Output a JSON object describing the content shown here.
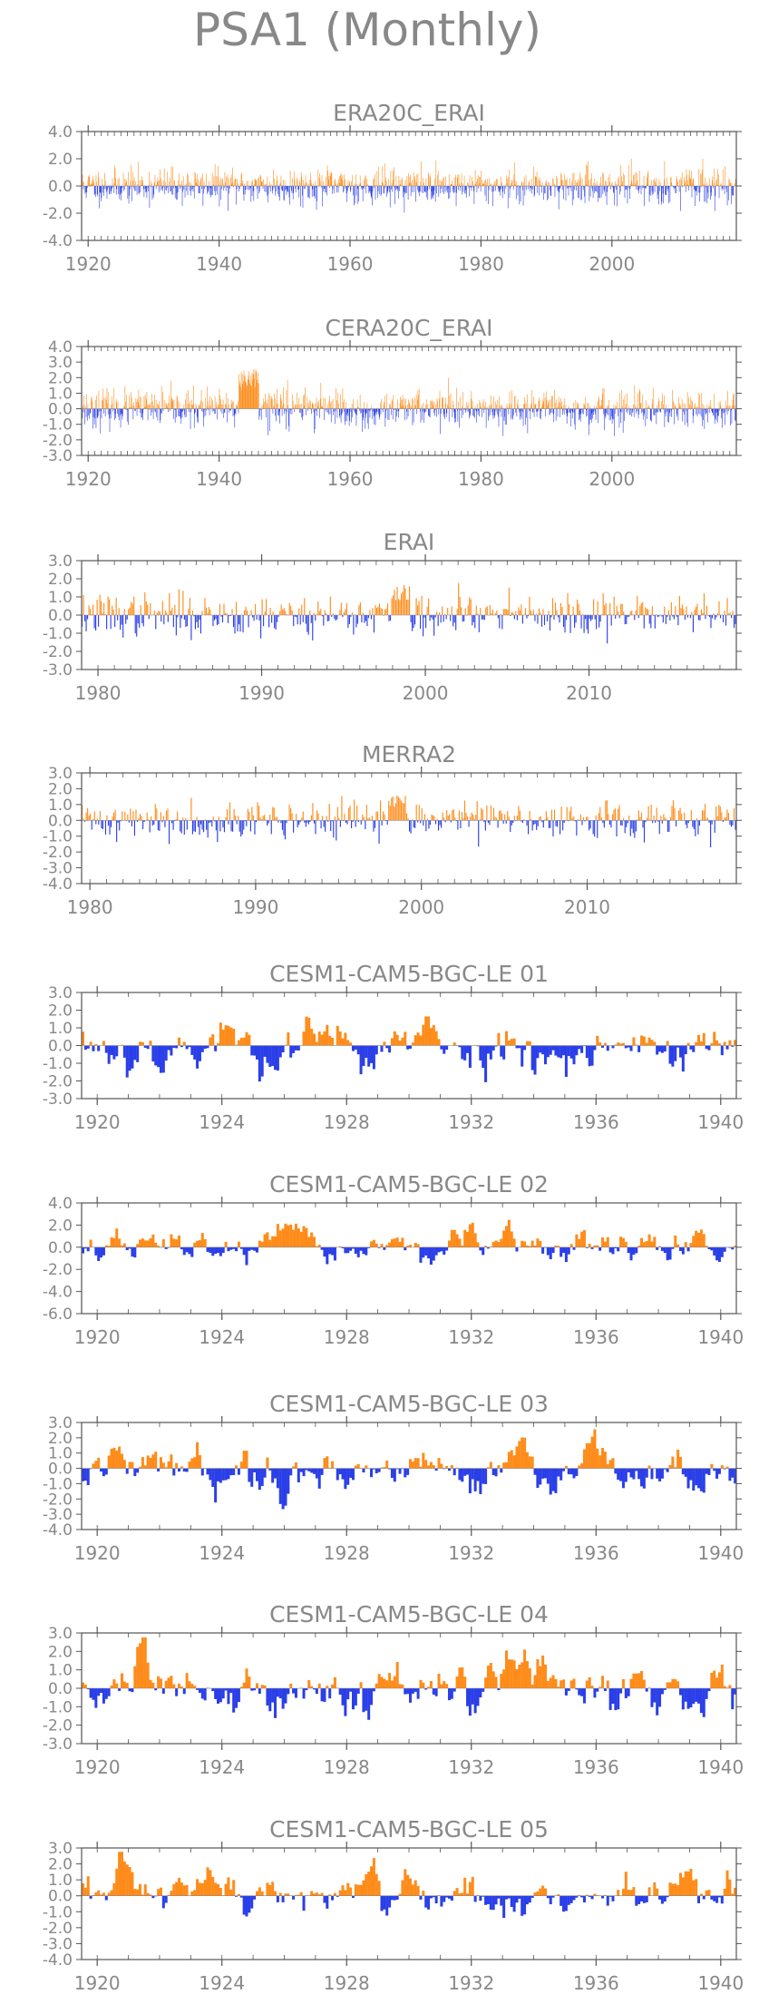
{
  "title": "PSA1 (Monthly)",
  "colors": {
    "positive": "#ff8c1a",
    "negative": "#2a3fe8",
    "axis": "#555555",
    "text": "#888888"
  },
  "chart_data": [
    {
      "type": "bar",
      "title": "ERA20C_ERAI",
      "x_range": [
        1919,
        2019
      ],
      "x_ticks": [
        1920,
        1940,
        1960,
        1980,
        2000
      ],
      "ylim": [
        -4.0,
        4.0
      ],
      "y_ticks": [
        "4.0",
        "2.0",
        "0.0",
        "-2.0",
        "-4.0"
      ],
      "style": "spiky",
      "amplitude": 1.0,
      "seed": 11,
      "bursts": []
    },
    {
      "type": "bar",
      "title": "CERA20C_ERAI",
      "x_range": [
        1919,
        2019
      ],
      "x_ticks": [
        1920,
        1940,
        1960,
        1980,
        2000
      ],
      "ylim": [
        -3.0,
        4.0
      ],
      "y_ticks": [
        "4.0",
        "3.0",
        "2.0",
        "1.0",
        "0.0",
        "-1.0",
        "-2.0",
        "-3.0"
      ],
      "style": "spiky",
      "amplitude": 0.9,
      "seed": 23,
      "bursts": [
        {
          "from": 1943,
          "to": 1946,
          "value": 2.3
        }
      ]
    },
    {
      "type": "bar",
      "title": "ERAI",
      "x_range": [
        1979,
        2019
      ],
      "x_ticks": [
        1980,
        1990,
        2000,
        2010
      ],
      "ylim": [
        -3.0,
        3.0
      ],
      "y_ticks": [
        "3.0",
        "2.0",
        "1.0",
        "0.0",
        "-1.0",
        "-2.0",
        "-3.0"
      ],
      "style": "spiky",
      "amplitude": 0.9,
      "seed": 37,
      "bursts": [
        {
          "from": 1998,
          "to": 1999,
          "value": 1.6
        }
      ]
    },
    {
      "type": "bar",
      "title": "MERRA2",
      "x_range": [
        1979.5,
        2019
      ],
      "x_ticks": [
        1980,
        1990,
        2000,
        2010
      ],
      "ylim": [
        -4.0,
        3.0
      ],
      "y_ticks": [
        "3.0",
        "2.0",
        "1.0",
        "0.0",
        "-1.0",
        "-2.0",
        "-3.0",
        "-4.0"
      ],
      "style": "spiky",
      "amplitude": 0.9,
      "seed": 41,
      "bursts": [
        {
          "from": 1998,
          "to": 1999,
          "value": 1.5
        }
      ]
    },
    {
      "type": "bar",
      "title": "CESM1-CAM5-BGC-LE 01",
      "x_range": [
        1919.5,
        1940.5
      ],
      "x_ticks": [
        1920,
        1924,
        1928,
        1932,
        1936,
        1940
      ],
      "ylim": [
        -3.0,
        3.0
      ],
      "y_ticks": [
        "3.0",
        "2.0",
        "1.0",
        "0.0",
        "-1.0",
        "-2.0",
        "-3.0"
      ],
      "style": "smooth",
      "amplitude": 1.0,
      "seed": 53,
      "bursts": []
    },
    {
      "type": "bar",
      "title": "CESM1-CAM5-BGC-LE 02",
      "x_range": [
        1919.5,
        1940.5
      ],
      "x_ticks": [
        1920,
        1924,
        1928,
        1932,
        1936,
        1940
      ],
      "ylim": [
        -6.0,
        4.0
      ],
      "y_ticks": [
        "4.0",
        "2.0",
        "0.0",
        "-2.0",
        "-4.0",
        "-6.0"
      ],
      "style": "smooth",
      "amplitude": 1.0,
      "seed": 67,
      "bursts": []
    },
    {
      "type": "bar",
      "title": "CESM1-CAM5-BGC-LE 03",
      "x_range": [
        1919.5,
        1940.5
      ],
      "x_ticks": [
        1920,
        1924,
        1928,
        1932,
        1936,
        1940
      ],
      "ylim": [
        -4.0,
        3.0
      ],
      "y_ticks": [
        "3.0",
        "2.0",
        "1.0",
        "0.0",
        "-1.0",
        "-2.0",
        "-3.0",
        "-4.0"
      ],
      "style": "smooth",
      "amplitude": 1.0,
      "seed": 79,
      "bursts": []
    },
    {
      "type": "bar",
      "title": "CESM1-CAM5-BGC-LE 04",
      "x_range": [
        1919.5,
        1940.5
      ],
      "x_ticks": [
        1920,
        1924,
        1928,
        1932,
        1936,
        1940
      ],
      "ylim": [
        -3.0,
        3.0
      ],
      "y_ticks": [
        "3.0",
        "2.0",
        "1.0",
        "0.0",
        "-1.0",
        "-2.0",
        "-3.0"
      ],
      "style": "smooth",
      "amplitude": 1.0,
      "seed": 83,
      "bursts": []
    },
    {
      "type": "bar",
      "title": "CESM1-CAM5-BGC-LE 05",
      "x_range": [
        1919.5,
        1940.5
      ],
      "x_ticks": [
        1920,
        1924,
        1928,
        1932,
        1936,
        1940
      ],
      "ylim": [
        -4.0,
        3.0
      ],
      "y_ticks": [
        "3.0",
        "2.0",
        "1.0",
        "0.0",
        "-1.0",
        "-2.0",
        "-3.0",
        "-4.0"
      ],
      "style": "smooth",
      "amplitude": 1.0,
      "seed": 97,
      "bursts": []
    }
  ]
}
